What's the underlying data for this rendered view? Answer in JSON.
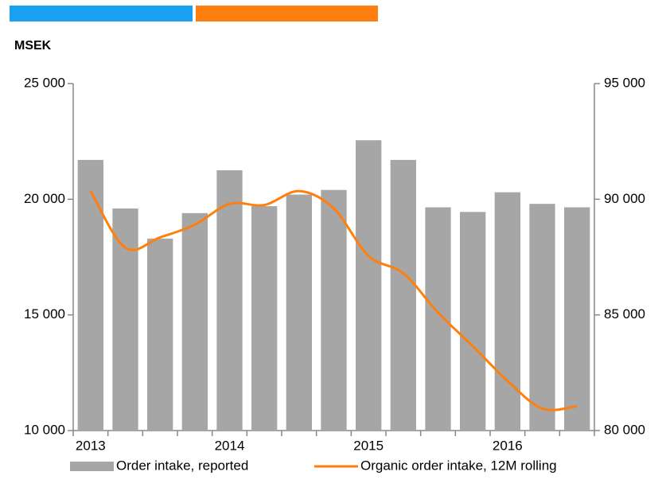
{
  "chart_data": {
    "type": "bar-line",
    "y_axis_unit": "MSEK",
    "categories": [
      "2013",
      null,
      null,
      null,
      "2014",
      null,
      null,
      null,
      "2015",
      null,
      null,
      null,
      "2016",
      null,
      null
    ],
    "series": [
      {
        "name": "Order intake, reported",
        "type": "bar",
        "color": "#a6a6a6",
        "values": [
          21700,
          19600,
          18300,
          19400,
          21250,
          19700,
          20200,
          20400,
          22550,
          21700,
          19650,
          19450,
          20300,
          19800,
          19650
        ]
      },
      {
        "name": "Organic order intake, 12M rolling",
        "type": "line",
        "axis": "y2",
        "color": "#ff7f0e",
        "values": [
          90350,
          87900,
          88350,
          88900,
          89800,
          89750,
          90350,
          89600,
          87550,
          86800,
          85100,
          83650,
          82150,
          80950,
          81050
        ]
      }
    ],
    "ylim": [
      10000,
      25000
    ],
    "yticks": [
      {
        "value": 10000,
        "label": "10 000"
      },
      {
        "value": 15000,
        "label": "15 000"
      },
      {
        "value": 20000,
        "label": "20 000"
      },
      {
        "value": 25000,
        "label": "25 000"
      }
    ],
    "y2lim": [
      80000,
      95000
    ],
    "y2ticks": [
      {
        "value": 80000,
        "label": "80 000"
      },
      {
        "value": 85000,
        "label": "85 000"
      },
      {
        "value": 90000,
        "label": "90 000"
      },
      {
        "value": 95000,
        "label": "95 000"
      }
    ],
    "grid": false,
    "legend": "bottom"
  }
}
